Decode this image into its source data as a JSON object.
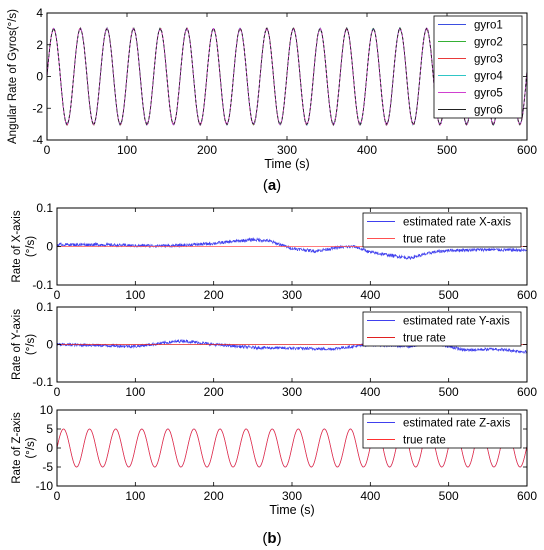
{
  "subfigure_labels": [
    "(a)",
    "(b)"
  ],
  "chart_data": [
    {
      "type": "line",
      "panel": "a",
      "ylabel": "Angular Rate of Gyros(°/s)",
      "xlabel": "Time (s)",
      "xlim": [
        0,
        600
      ],
      "ylim": [
        -4,
        4
      ],
      "xticks": [
        0,
        100,
        200,
        300,
        400,
        500,
        600
      ],
      "yticks": [
        -4,
        -2,
        0,
        2,
        4
      ],
      "grid": false,
      "legend_position": "top-right",
      "signal": {
        "amplitude": 3,
        "period_s": 33.3,
        "phase": 0
      },
      "series": [
        {
          "name": "gyro1",
          "color": "#3b4ee0",
          "noise": 0.05
        },
        {
          "name": "gyro2",
          "color": "#35b035",
          "noise": 0.05
        },
        {
          "name": "gyro3",
          "color": "#e83a3a",
          "noise": 0.05
        },
        {
          "name": "gyro4",
          "color": "#2fc6c6",
          "noise": 0.05
        },
        {
          "name": "gyro5",
          "color": "#d040d0",
          "noise": 0.05
        },
        {
          "name": "gyro6",
          "color": "#222222",
          "noise": 0.05
        }
      ]
    },
    {
      "type": "line",
      "panel": "b-x",
      "ylabel": "Rate of X-axis (°/s)",
      "xlabel": "",
      "xlim": [
        0,
        600
      ],
      "ylim": [
        -0.1,
        0.1
      ],
      "xticks": [
        0,
        100,
        200,
        300,
        400,
        500,
        600
      ],
      "yticks": [
        -0.1,
        0,
        0.1
      ],
      "ytick_labels": [
        "-0.1",
        "0",
        "0.1"
      ],
      "grid": false,
      "legend_position": "top-right",
      "series": [
        {
          "name": "estimated rate X-axis",
          "color": "#4040ee",
          "noise": 0.004,
          "x": [
            0,
            50,
            100,
            150,
            200,
            250,
            270,
            300,
            330,
            360,
            380,
            400,
            450,
            480,
            500,
            550,
            600
          ],
          "y": [
            0.005,
            0.005,
            0.002,
            0.002,
            0.008,
            0.018,
            0.015,
            -0.005,
            -0.012,
            -0.002,
            0.0,
            -0.015,
            -0.03,
            -0.015,
            -0.01,
            -0.008,
            -0.01
          ]
        },
        {
          "name": "true rate",
          "color": "#ff5050",
          "x": [
            0,
            600
          ],
          "y": [
            0,
            0
          ]
        }
      ]
    },
    {
      "type": "line",
      "panel": "b-y",
      "ylabel": "Rate of Y-axis (°/s)",
      "xlabel": "",
      "xlim": [
        0,
        600
      ],
      "ylim": [
        -0.1,
        0.1
      ],
      "xticks": [
        0,
        100,
        200,
        300,
        400,
        500,
        600
      ],
      "yticks": [
        -0.1,
        0,
        0.1
      ],
      "ytick_labels": [
        "-0.1",
        "0",
        "0.1"
      ],
      "grid": false,
      "legend_position": "top-right",
      "series": [
        {
          "name": "estimated rate Y-axis",
          "color": "#4040ee",
          "noise": 0.004,
          "x": [
            0,
            50,
            100,
            160,
            200,
            250,
            300,
            350,
            400,
            450,
            480,
            520,
            560,
            600
          ],
          "y": [
            0.0,
            -0.002,
            -0.005,
            0.01,
            0.0,
            -0.008,
            -0.01,
            -0.012,
            0.0,
            -0.005,
            0.005,
            -0.015,
            -0.012,
            -0.02
          ]
        },
        {
          "name": "true rate",
          "color": "#e02020",
          "x": [
            0,
            600
          ],
          "y": [
            0,
            0
          ]
        }
      ]
    },
    {
      "type": "line",
      "panel": "b-z",
      "ylabel": "Rate of Z-axis (°/s)",
      "xlabel": "Time (s)",
      "xlim": [
        0,
        600
      ],
      "ylim": [
        -10,
        10
      ],
      "xticks": [
        0,
        100,
        200,
        300,
        400,
        500,
        600
      ],
      "yticks": [
        -10,
        -5,
        0,
        5,
        10
      ],
      "grid": false,
      "legend_position": "top-right",
      "signal": {
        "amplitude": 5,
        "period_s": 33.3,
        "phase": 0
      },
      "series": [
        {
          "name": "estimated rate Z-axis",
          "color": "#4040ee",
          "noise": 0.05
        },
        {
          "name": "true rate",
          "color": "#ff3030",
          "noise": 0
        }
      ]
    }
  ]
}
